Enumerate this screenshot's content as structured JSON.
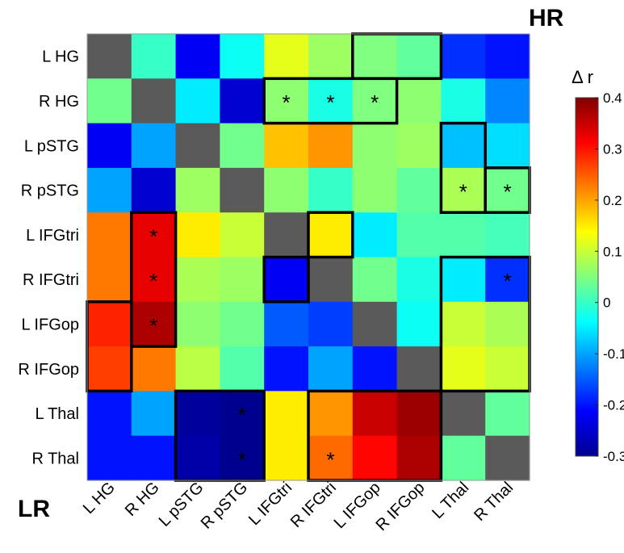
{
  "chart_data": {
    "type": "heatmap",
    "rows": [
      "L HG",
      "R HG",
      "L pSTG",
      "R pSTG",
      "L IFGtri",
      "R IFGtri",
      "L IFGop",
      "R IFGop",
      "L Thal",
      "R Thal"
    ],
    "cols": [
      "L HG",
      "R HG",
      "L pSTG",
      "R pSTG",
      "L IFGtri",
      "R IFGtri",
      "L IFGop",
      "R IFGop",
      "L Thal",
      "R Thal"
    ],
    "values": [
      [
        null,
        0.0,
        -0.22,
        -0.03,
        0.12,
        0.07,
        0.05,
        0.03,
        -0.18,
        -0.2
      ],
      [
        0.04,
        null,
        -0.05,
        -0.25,
        0.06,
        -0.02,
        0.05,
        0.06,
        -0.02,
        -0.12
      ],
      [
        -0.22,
        -0.1,
        null,
        0.04,
        0.18,
        0.21,
        0.06,
        0.07,
        -0.08,
        -0.06
      ],
      [
        -0.1,
        -0.25,
        0.07,
        null,
        0.06,
        0.0,
        0.06,
        0.03,
        0.08,
        0.04
      ],
      [
        0.23,
        0.33,
        0.15,
        0.1,
        null,
        0.15,
        -0.05,
        0.02,
        0.02,
        0.01
      ],
      [
        0.23,
        0.33,
        0.08,
        0.07,
        -0.22,
        null,
        0.04,
        -0.02,
        -0.05,
        -0.18
      ],
      [
        0.29,
        0.37,
        0.06,
        0.04,
        -0.15,
        -0.17,
        null,
        -0.03,
        0.1,
        0.08
      ],
      [
        0.27,
        0.23,
        0.09,
        0.02,
        -0.2,
        -0.1,
        -0.2,
        null,
        0.12,
        0.1
      ],
      [
        -0.2,
        -0.1,
        -0.29,
        -0.31,
        0.15,
        0.21,
        0.35,
        0.38,
        null,
        0.03
      ],
      [
        -0.2,
        -0.2,
        -0.28,
        -0.31,
        0.15,
        0.24,
        0.31,
        0.37,
        0.03,
        null
      ]
    ],
    "significant": [
      [
        1,
        4
      ],
      [
        1,
        5
      ],
      [
        1,
        6
      ],
      [
        3,
        8
      ],
      [
        3,
        9
      ],
      [
        4,
        1
      ],
      [
        5,
        1
      ],
      [
        5,
        9
      ],
      [
        6,
        1
      ],
      [
        8,
        3
      ],
      [
        9,
        3
      ],
      [
        9,
        5
      ]
    ],
    "outlined_groups": [
      {
        "r0": 0,
        "r1": 0,
        "c0": 6,
        "c1": 7
      },
      {
        "r0": 1,
        "r1": 1,
        "c0": 4,
        "c1": 6
      },
      {
        "r0": 2,
        "r1": 3,
        "c0": 8,
        "c1": 8
      },
      {
        "r0": 3,
        "r1": 3,
        "c0": 9,
        "c1": 9
      },
      {
        "r0": 4,
        "r1": 4,
        "c0": 5,
        "c1": 5
      },
      {
        "r0": 4,
        "r1": 6,
        "c0": 1,
        "c1": 1
      },
      {
        "r0": 5,
        "r1": 5,
        "c0": 4,
        "c1": 4
      },
      {
        "r0": 5,
        "r1": 7,
        "c0": 8,
        "c1": 9
      },
      {
        "r0": 6,
        "r1": 7,
        "c0": 0,
        "c1": 0
      },
      {
        "r0": 8,
        "r1": 9,
        "c0": 2,
        "c1": 3
      },
      {
        "r0": 8,
        "r1": 9,
        "c0": 5,
        "c1": 7
      }
    ],
    "significance_marker": "*",
    "corner_labels": {
      "top_right": "HR",
      "bottom_left": "LR"
    },
    "colorbar": {
      "title": "Δ r",
      "min": -0.3,
      "max": 0.4,
      "ticks": [
        "0.4",
        "0.3",
        "0.2",
        "0.1",
        "0",
        "-0.1",
        "-0.2",
        "-0.3"
      ],
      "tick_values": [
        0.4,
        0.3,
        0.2,
        0.1,
        0,
        -0.1,
        -0.2,
        -0.3
      ]
    },
    "colormap": "jet",
    "diagonal_color": "#5a5a5a"
  }
}
